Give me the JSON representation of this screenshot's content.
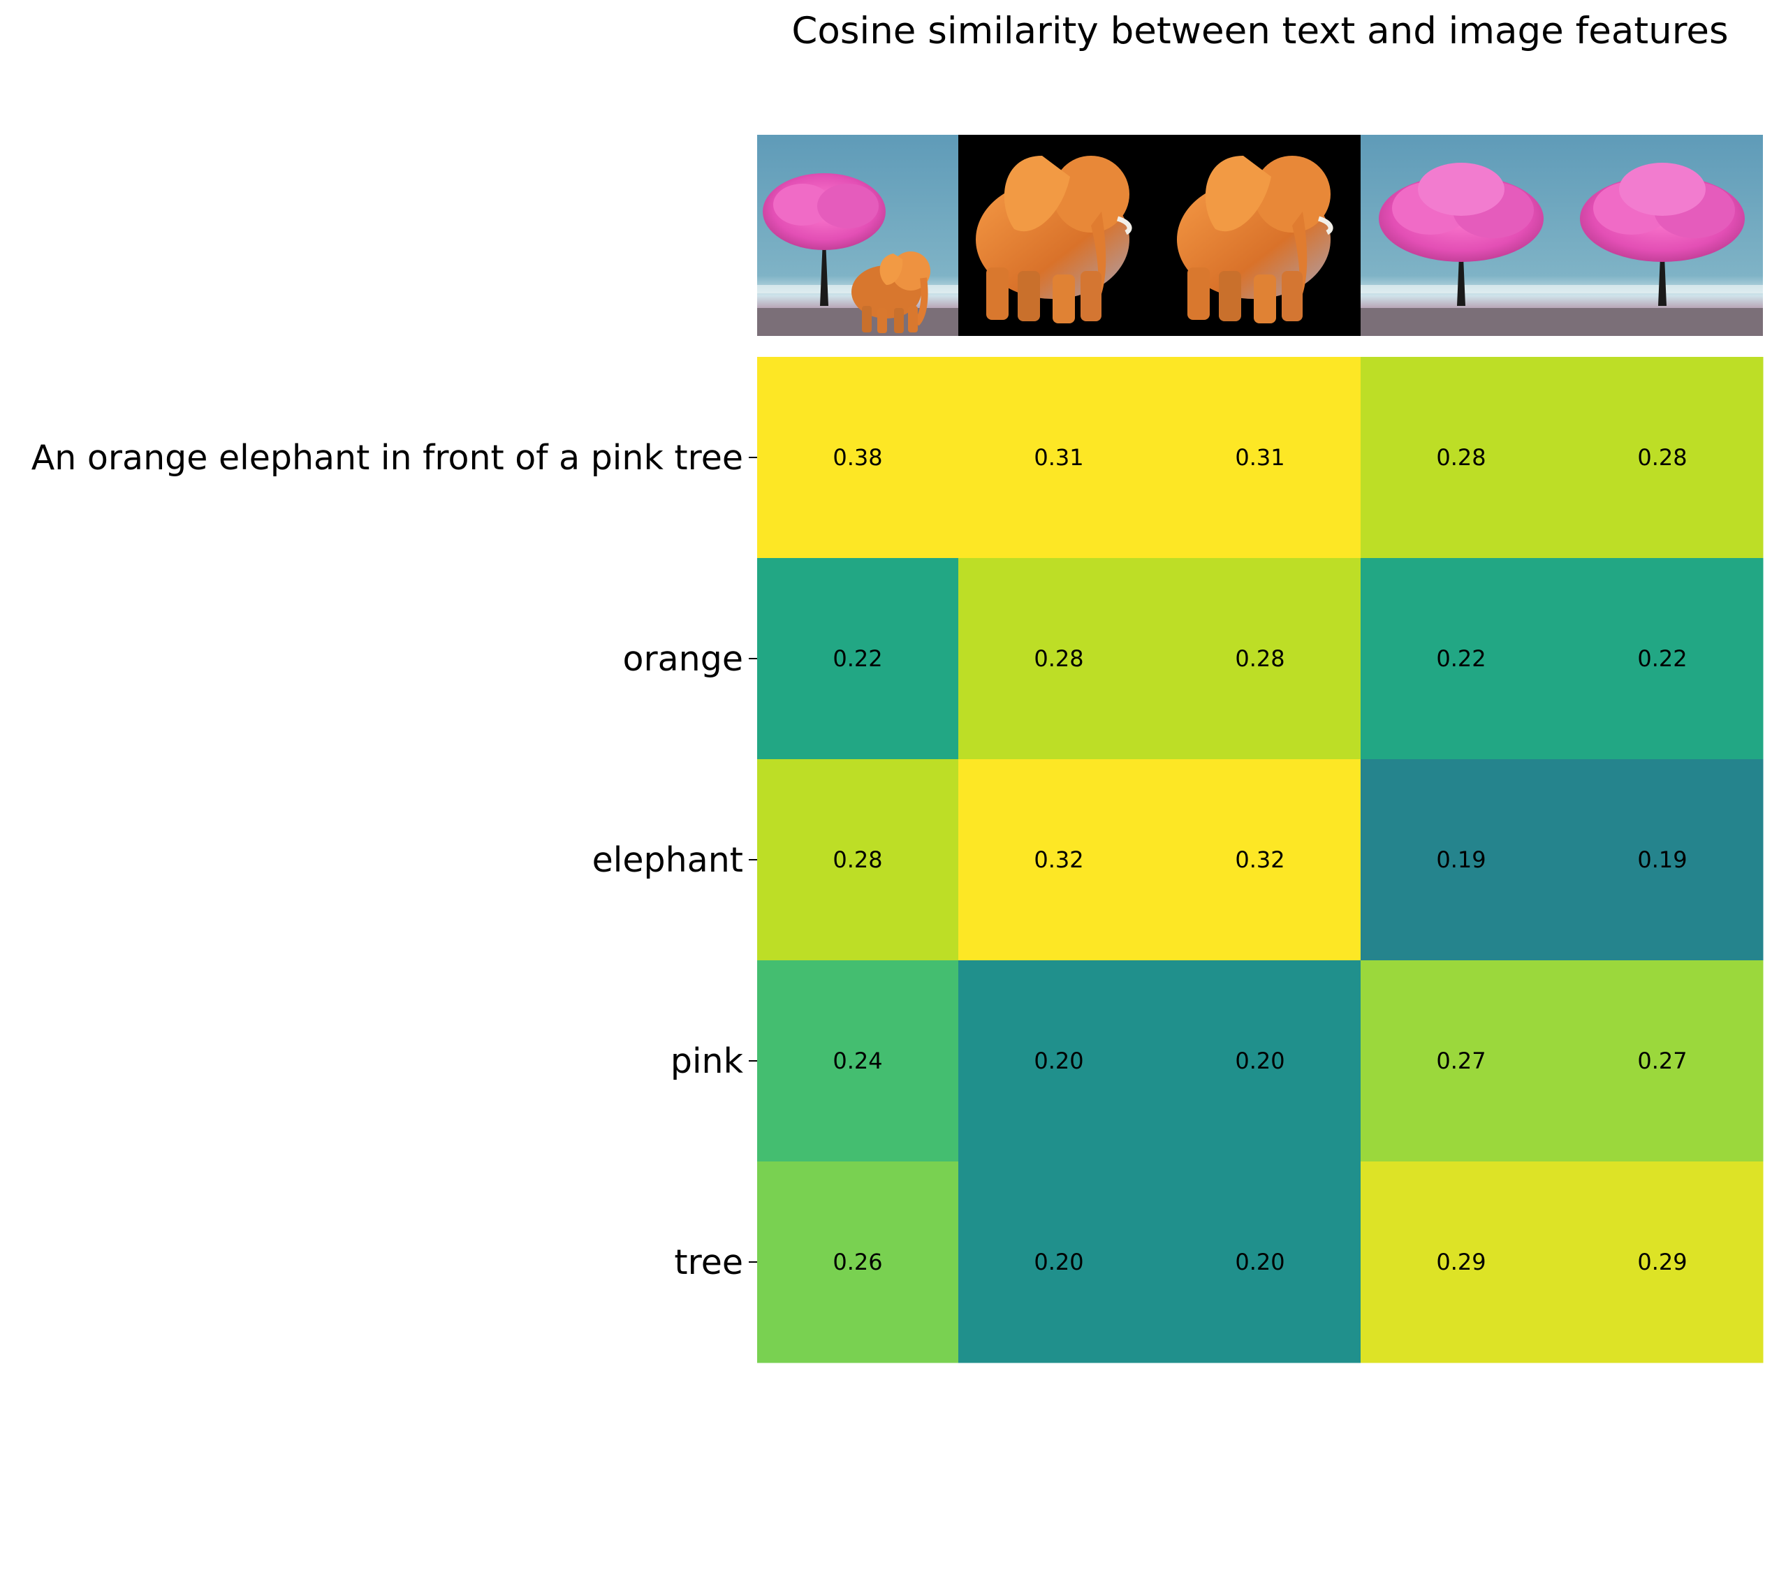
{
  "chart_data": {
    "type": "heatmap",
    "title": "Cosine similarity between text and image features",
    "rows": [
      "An orange elephant in front of a pink tree",
      "orange",
      "elephant",
      "pink",
      "tree"
    ],
    "columns": [
      "elephant-under-pink-tree",
      "orange-elephant-black-background",
      "orange-elephant-black-background",
      "pink-tree",
      "pink-tree"
    ],
    "values": [
      [
        0.38,
        0.31,
        0.31,
        0.28,
        0.28
      ],
      [
        0.22,
        0.28,
        0.28,
        0.22,
        0.22
      ],
      [
        0.28,
        0.32,
        0.32,
        0.19,
        0.19
      ],
      [
        0.24,
        0.2,
        0.2,
        0.27,
        0.27
      ],
      [
        0.26,
        0.2,
        0.2,
        0.29,
        0.29
      ]
    ],
    "value_format": "0.00",
    "colormap": "viridis",
    "vmin": 0.1,
    "vmax": 0.3,
    "grid": false,
    "legend": "none"
  }
}
